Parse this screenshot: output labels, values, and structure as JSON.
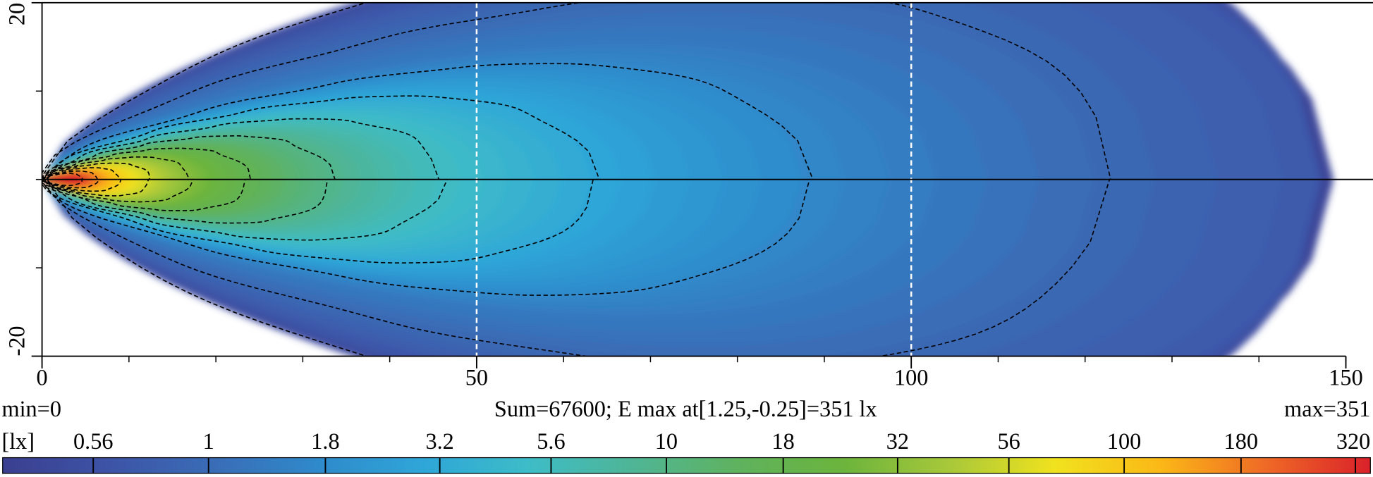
{
  "chart_data": {
    "type": "heatmap",
    "xlim": [
      0,
      150
    ],
    "xticks": [
      0,
      50,
      100,
      150
    ],
    "xminorticks": [
      0,
      10,
      20,
      30,
      40,
      50,
      60,
      70,
      80,
      90,
      100,
      110,
      120,
      130,
      140,
      150
    ],
    "ylim": [
      -20,
      20
    ],
    "yticks": [
      -20,
      20
    ],
    "yminorticks": [
      -10,
      0,
      10
    ],
    "vlines": [
      50,
      100
    ],
    "hlines": [
      0
    ],
    "min_label": "min=0",
    "summary": "Sum=67600; E max at[1.25,-0.25]=351 lx",
    "max_label": "max=351",
    "colorbar": {
      "label": "[lx]",
      "scale": "log",
      "lim": [
        0.355,
        345
      ],
      "ticks": [
        0.56,
        1,
        1.8,
        3.2,
        5.6,
        10,
        18,
        32,
        56,
        100,
        180,
        320
      ],
      "colors": [
        "#3b3f90",
        "#3d53a6",
        "#3a6cb6",
        "#2f8acb",
        "#2fa6d8",
        "#3ebcc7",
        "#4fb595",
        "#5fb25e",
        "#6cb43c",
        "#a8c83a",
        "#f0e21e",
        "#fbb817",
        "#ef6a26",
        "#d9212a"
      ]
    }
  }
}
